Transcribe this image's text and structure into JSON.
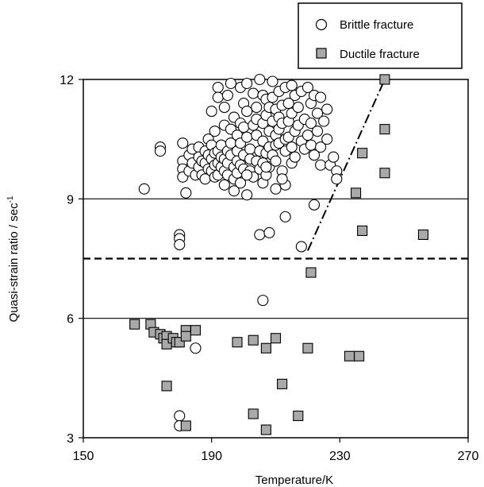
{
  "chart_data": {
    "type": "scatter",
    "title": "",
    "xlabel": "Temperature/K",
    "ylabel": "Quasi-strain ratio / sec",
    "ylabel_sup": "-1",
    "xlim": [
      150,
      270
    ],
    "ylim": [
      3,
      12
    ],
    "xticks": [
      150,
      190,
      230,
      270
    ],
    "yticks": [
      3,
      6,
      9,
      12
    ],
    "grid_lines_y": [
      6,
      9
    ],
    "dashed_line_y": 7.5,
    "dashdot_line": [
      [
        220,
        7.7
      ],
      [
        244,
        12
      ]
    ],
    "legend_position": "top-right",
    "series": [
      {
        "name": "Brittle fracture",
        "marker": "open-circle",
        "color": "#000000",
        "points": [
          [
            169,
            9.25
          ],
          [
            174,
            10.3
          ],
          [
            174,
            10.2
          ],
          [
            180,
            8.1
          ],
          [
            180,
            8.0
          ],
          [
            180,
            7.85
          ],
          [
            185,
            5.25
          ],
          [
            180,
            3.55
          ],
          [
            180,
            3.3
          ],
          [
            181,
            10.4
          ],
          [
            181,
            9.95
          ],
          [
            181,
            9.75
          ],
          [
            181,
            9.55
          ],
          [
            182,
            9.15
          ],
          [
            183,
            10.1
          ],
          [
            183,
            9.7
          ],
          [
            184,
            10.25
          ],
          [
            184,
            9.9
          ],
          [
            185,
            9.6
          ],
          [
            186,
            10.3
          ],
          [
            186,
            10.05
          ],
          [
            186,
            9.8
          ],
          [
            187,
            9.95
          ],
          [
            187,
            9.6
          ],
          [
            188,
            10.2
          ],
          [
            188,
            9.9
          ],
          [
            188,
            9.5
          ],
          [
            189,
            10.5
          ],
          [
            189,
            10.1
          ],
          [
            189,
            9.75
          ],
          [
            190,
            11.2
          ],
          [
            190,
            10.35
          ],
          [
            190,
            10.0
          ],
          [
            190,
            9.7
          ],
          [
            191,
            10.7
          ],
          [
            191,
            10.15
          ],
          [
            191,
            9.85
          ],
          [
            191,
            9.55
          ],
          [
            192,
            11.8
          ],
          [
            192,
            11.55
          ],
          [
            192,
            10.2
          ],
          [
            192,
            9.9
          ],
          [
            192,
            9.6
          ],
          [
            193,
            10.35
          ],
          [
            193,
            10.05
          ],
          [
            193,
            9.8
          ],
          [
            194,
            11.3
          ],
          [
            194,
            10.85
          ],
          [
            194,
            10.0
          ],
          [
            194,
            9.7
          ],
          [
            194,
            9.35
          ],
          [
            195,
            11.6
          ],
          [
            195,
            10.2
          ],
          [
            195,
            9.9
          ],
          [
            195,
            9.6
          ],
          [
            196,
            11.9
          ],
          [
            196,
            10.75
          ],
          [
            196,
            10.4
          ],
          [
            196,
            10.1
          ],
          [
            197,
            11.05
          ],
          [
            197,
            9.8
          ],
          [
            197,
            9.5
          ],
          [
            198,
            10.6
          ],
          [
            198,
            10.2
          ],
          [
            198,
            9.95
          ],
          [
            198,
            9.65
          ],
          [
            199,
            11.8
          ],
          [
            199,
            10.9
          ],
          [
            199,
            10.4
          ],
          [
            199,
            9.85
          ],
          [
            199,
            9.4
          ],
          [
            200,
            11.4
          ],
          [
            200,
            10.8
          ],
          [
            200,
            10.1
          ],
          [
            200,
            9.75
          ],
          [
            201,
            11.9
          ],
          [
            201,
            11.2
          ],
          [
            201,
            10.55
          ],
          [
            201,
            9.1
          ],
          [
            202,
            10.25
          ],
          [
            202,
            10.0
          ],
          [
            202,
            9.7
          ],
          [
            203,
            11.65
          ],
          [
            203,
            10.85
          ],
          [
            203,
            9.55
          ],
          [
            204,
            11.3
          ],
          [
            204,
            11.0
          ],
          [
            204,
            10.6
          ],
          [
            204,
            9.95
          ],
          [
            205,
            12.0
          ],
          [
            205,
            10.2
          ],
          [
            205,
            9.75
          ],
          [
            205,
            8.1
          ],
          [
            206,
            11.6
          ],
          [
            206,
            10.9
          ],
          [
            206,
            10.45
          ],
          [
            206,
            9.9
          ],
          [
            206,
            9.4
          ],
          [
            207,
            11.5
          ],
          [
            207,
            11.1
          ],
          [
            207,
            10.15
          ],
          [
            207,
            9.6
          ],
          [
            208,
            11.3
          ],
          [
            208,
            10.7
          ],
          [
            208,
            10.3
          ],
          [
            208,
            9.8
          ],
          [
            209,
            11.95
          ],
          [
            209,
            11.55
          ],
          [
            209,
            10.95
          ],
          [
            209,
            10.1
          ],
          [
            210,
            11.25
          ],
          [
            210,
            10.6
          ],
          [
            210,
            10.35
          ],
          [
            210,
            9.95
          ],
          [
            210,
            9.25
          ],
          [
            211,
            11.7
          ],
          [
            211,
            11.05
          ],
          [
            211,
            10.75
          ],
          [
            211,
            10.4
          ],
          [
            212,
            11.35
          ],
          [
            212,
            10.9
          ],
          [
            212,
            9.7
          ],
          [
            213,
            11.8
          ],
          [
            213,
            10.5
          ],
          [
            213,
            10.2
          ],
          [
            213,
            9.35
          ],
          [
            214,
            11.4
          ],
          [
            214,
            10.95
          ],
          [
            214,
            10.55
          ],
          [
            215,
            11.85
          ],
          [
            215,
            11.15
          ],
          [
            215,
            10.3
          ],
          [
            215,
            9.9
          ],
          [
            216,
            11.6
          ],
          [
            216,
            10.7
          ],
          [
            216,
            10.05
          ],
          [
            217,
            11.3
          ],
          [
            217,
            10.85
          ],
          [
            218,
            11.7
          ],
          [
            218,
            10.45
          ],
          [
            219,
            11.0
          ],
          [
            219,
            10.25
          ],
          [
            220,
            11.8
          ],
          [
            220,
            10.6
          ],
          [
            221,
            11.4
          ],
          [
            221,
            10.9
          ],
          [
            221,
            10.35
          ],
          [
            222,
            11.6
          ],
          [
            222,
            10.1
          ],
          [
            223,
            11.15
          ],
          [
            223,
            10.7
          ],
          [
            224,
            11.55
          ],
          [
            224,
            10.3
          ],
          [
            224,
            9.85
          ],
          [
            225,
            10.95
          ],
          [
            226,
            11.25
          ],
          [
            226,
            10.5
          ],
          [
            227,
            9.85
          ],
          [
            228,
            10.05
          ],
          [
            229,
            9.7
          ],
          [
            229,
            9.5
          ],
          [
            208,
            8.15
          ],
          [
            213,
            8.55
          ],
          [
            222,
            8.85
          ],
          [
            218,
            7.8
          ],
          [
            206,
            6.45
          ],
          [
            197,
            9.2
          ],
          [
            201,
            9.6
          ],
          [
            207,
            9.8
          ],
          [
            212,
            9.5
          ]
        ]
      },
      {
        "name": "Ductile fracture",
        "marker": "filled-square",
        "color": "#a9a9a9",
        "points": [
          [
            166,
            5.85
          ],
          [
            171,
            5.85
          ],
          [
            172,
            5.65
          ],
          [
            174,
            5.6
          ],
          [
            175,
            5.5
          ],
          [
            176,
            5.55
          ],
          [
            176,
            5.35
          ],
          [
            178,
            5.5
          ],
          [
            179,
            5.4
          ],
          [
            180,
            5.4
          ],
          [
            182,
            5.7
          ],
          [
            182,
            5.55
          ],
          [
            185,
            5.7
          ],
          [
            176,
            4.3
          ],
          [
            182,
            3.3
          ],
          [
            198,
            5.4
          ],
          [
            203,
            5.45
          ],
          [
            207,
            5.25
          ],
          [
            210,
            5.5
          ],
          [
            212,
            4.35
          ],
          [
            220,
            5.25
          ],
          [
            233,
            5.05
          ],
          [
            236,
            5.05
          ],
          [
            203,
            3.6
          ],
          [
            207,
            3.2
          ],
          [
            217,
            3.55
          ],
          [
            221,
            7.15
          ],
          [
            235,
            9.15
          ],
          [
            237,
            10.15
          ],
          [
            237,
            8.2
          ],
          [
            244,
            12.0
          ],
          [
            244,
            10.75
          ],
          [
            244,
            9.65
          ],
          [
            256,
            8.1
          ]
        ]
      }
    ]
  }
}
